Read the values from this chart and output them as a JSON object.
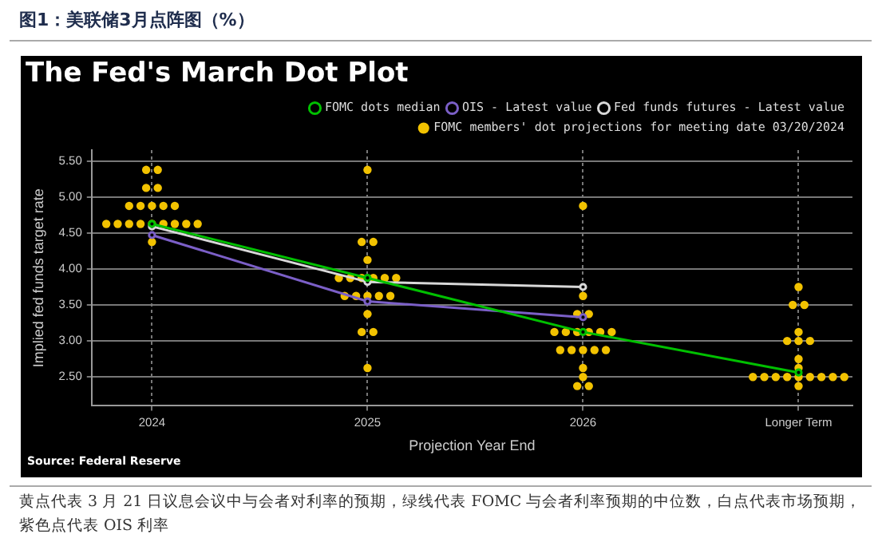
{
  "chart_data": {
    "type": "scatter",
    "title": "图1：美联储3月点阵图（%）",
    "subtitle": "The Fed's March Dot Plot",
    "xlabel": "Projection Year End",
    "ylabel": "Implied fed funds target rate",
    "annotations": [
      "Source: Federal Reserve",
      "黄点代表 3 月 21 日议息会议中与会者对利率的预期，绿线代表 FOMC 与会者利率预期的中位数，白点代表市场预期，紫色点代表 OIS 利率"
    ],
    "xlim": [
      2023.72,
      2027.25
    ],
    "xticks": [
      2024,
      2025,
      2026,
      {
        "value": 2027,
        "label": "Longer Term"
      }
    ],
    "ylim": [
      2.1,
      5.65
    ],
    "yticks": [
      {
        "value": 2.5,
        "label": "2.50"
      },
      {
        "value": 3,
        "label": "3.00"
      },
      {
        "value": 3.5,
        "label": "3.50"
      },
      {
        "value": 4,
        "label": "4.00"
      },
      {
        "value": 4.5,
        "label": "4.50"
      },
      {
        "value": 5,
        "label": "5.00"
      },
      {
        "value": 5.5,
        "label": "5.50"
      }
    ],
    "grid": true,
    "legend": "top right",
    "marker": "circle",
    "series": [
      {
        "name": "FOMC members' dot projections for meeting date 03/20/2024",
        "color": "#f2c200",
        "x": [
          2023.973,
          2024.027,
          2023.973,
          2024.027,
          2023.894,
          2023.947,
          2024,
          2024.053,
          2024.106,
          2023.788,
          2023.841,
          2023.894,
          2023.947,
          2024,
          2024.053,
          2024.106,
          2024.159,
          2024.212,
          2024,
          2025,
          2024.973,
          2025.027,
          2025,
          2024.867,
          2024.92,
          2024.973,
          2025.027,
          2025.08,
          2025.133,
          2024.894,
          2024.947,
          2025,
          2025.053,
          2025.106,
          2025,
          2024.973,
          2025.027,
          2025,
          2026,
          2026,
          2025.973,
          2026.027,
          2025.867,
          2025.92,
          2025.973,
          2026.027,
          2026.08,
          2026.133,
          2025.894,
          2025.947,
          2026,
          2026.053,
          2026.106,
          2026,
          2026,
          2025.973,
          2026.027,
          2027,
          2026.973,
          2027.027,
          2027,
          2026.947,
          2027,
          2027.053,
          2027,
          2027,
          2026.788,
          2026.841,
          2026.894,
          2026.947,
          2027,
          2027.053,
          2027.106,
          2027.159,
          2027.212,
          2027
        ],
        "values": [
          5.375,
          5.375,
          5.125,
          5.125,
          4.875,
          4.875,
          4.875,
          4.875,
          4.875,
          4.625,
          4.625,
          4.625,
          4.625,
          4.625,
          4.625,
          4.625,
          4.625,
          4.625,
          4.375,
          5.375,
          4.375,
          4.375,
          4.125,
          3.875,
          3.875,
          3.875,
          3.875,
          3.875,
          3.875,
          3.625,
          3.625,
          3.625,
          3.625,
          3.625,
          3.375,
          3.125,
          3.125,
          2.625,
          4.875,
          3.625,
          3.375,
          3.375,
          3.125,
          3.125,
          3.125,
          3.125,
          3.125,
          3.125,
          2.875,
          2.875,
          2.875,
          2.875,
          2.875,
          2.625,
          2.5,
          2.375,
          2.375,
          3.75,
          3.5,
          3.5,
          3.125,
          3,
          3,
          3,
          2.75,
          2.625,
          2.5,
          2.5,
          2.5,
          2.5,
          2.5,
          2.5,
          2.5,
          2.5,
          2.5,
          2.375
        ]
      },
      {
        "name": "FOMC dots median",
        "type": "line",
        "color": "#00c000",
        "x": [
          2024,
          2025,
          2026,
          2027
        ],
        "values": [
          4.625,
          3.875,
          3.125,
          2.5625
        ]
      },
      {
        "name": "OIS - Latest value",
        "type": "line",
        "color": "#7b5fc7",
        "x": [
          2024,
          2025,
          2026
        ],
        "values": [
          4.47,
          3.55,
          3.33
        ]
      },
      {
        "name": "Fed funds futures - Latest value",
        "type": "line",
        "color": "#d8d8d8",
        "x": [
          2024,
          2025,
          2026
        ],
        "values": [
          4.59,
          3.82,
          3.75
        ]
      }
    ]
  }
}
